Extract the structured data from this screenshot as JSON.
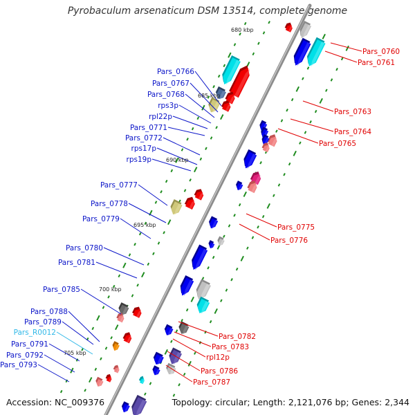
{
  "title": "Pyrobaculum arsenaticum DSM 13514, complete genome",
  "footer": {
    "accession": "Accession: NC_009376",
    "topology": "Topology: circular; Length: 2,121,076 bp; Genes: 2,344"
  },
  "colors": {
    "left_label": "#0a14c8",
    "right_label": "#e00000",
    "rna_label": "#30b8e8",
    "backbone": "#8c8c8c",
    "tick": "#1e8c1e"
  },
  "kbp_marks": [
    "680 kbp",
    "685 kbp",
    "690 kbp",
    "695 kbp",
    "700 kbp",
    "705 kbp"
  ],
  "left_labels": [
    "Pars_0766",
    "Pars_0767",
    "Pars_0768",
    "rps3p",
    "rpl22p",
    "Pars_0771",
    "Pars_0772",
    "rps17p",
    "rps19p",
    "Pars_0777",
    "Pars_0778",
    "Pars_0779",
    "Pars_0780",
    "Pars_0781",
    "Pars_0785",
    "Pars_0788",
    "Pars_0789",
    "Pars_R0012",
    "Pars_0791",
    "Pars_0792",
    "Pars_0793"
  ],
  "right_labels": [
    "Pars_0760",
    "Pars_0761",
    "Pars_0763",
    "Pars_0764",
    "Pars_0765",
    "Pars_0775",
    "Pars_0776",
    "Pars_0782",
    "Pars_0783",
    "rpl12p",
    "Pars_0786",
    "Pars_0787"
  ],
  "gene_colors": [
    "blue",
    "cyan",
    "red",
    "pink",
    "magenta",
    "khaki",
    "grey",
    "dark-grey",
    "purple",
    "orange",
    "slate"
  ]
}
